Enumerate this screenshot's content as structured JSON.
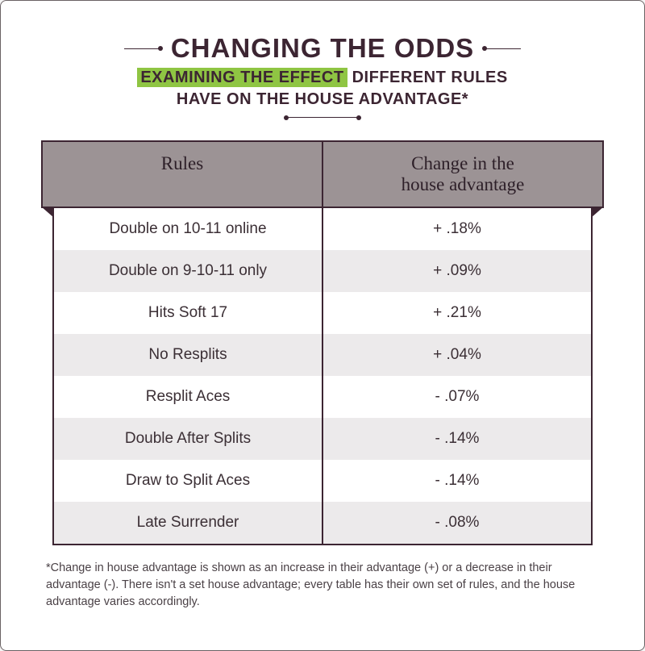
{
  "header": {
    "title": "CHANGING THE ODDS",
    "subtitle_highlight": "EXAMINING THE EFFECT",
    "subtitle_rest1": " DIFFERENT RULES",
    "subtitle_line2": "HAVE ON THE HOUSE ADVANTAGE*"
  },
  "table": {
    "columns": [
      "Rules",
      "Change in the house advantage"
    ],
    "header_bg": "#9c9395",
    "border_color": "#3c2532",
    "row_alt_bg": "#eceaeb",
    "row_bg": "#ffffff",
    "font_color": "#3b2f35",
    "rows": [
      {
        "rule": "Double on 10-11 online",
        "change": "+ .18%"
      },
      {
        "rule": "Double on 9-10-11 only",
        "change": "+ .09%"
      },
      {
        "rule": "Hits Soft 17",
        "change": "+ .21%"
      },
      {
        "rule": "No Resplits",
        "change": "+ .04%"
      },
      {
        "rule": "Resplit Aces",
        "change": "- .07%"
      },
      {
        "rule": "Double After Splits",
        "change": "- .14%"
      },
      {
        "rule": "Draw to Split Aces",
        "change": "- .14%"
      },
      {
        "rule": "Late Surrender",
        "change": "- .08%"
      }
    ]
  },
  "footnote": "*Change in house advantage is shown as an increase in their advantage (+) or a decrease in their advantage (-). There isn't a set house advantage; every table has their own set of rules, and the house advantage varies accordingly.",
  "colors": {
    "highlight": "#8fc543",
    "title": "#3c2532",
    "card_bg": "#ffffff",
    "card_border": "#6a6264"
  }
}
